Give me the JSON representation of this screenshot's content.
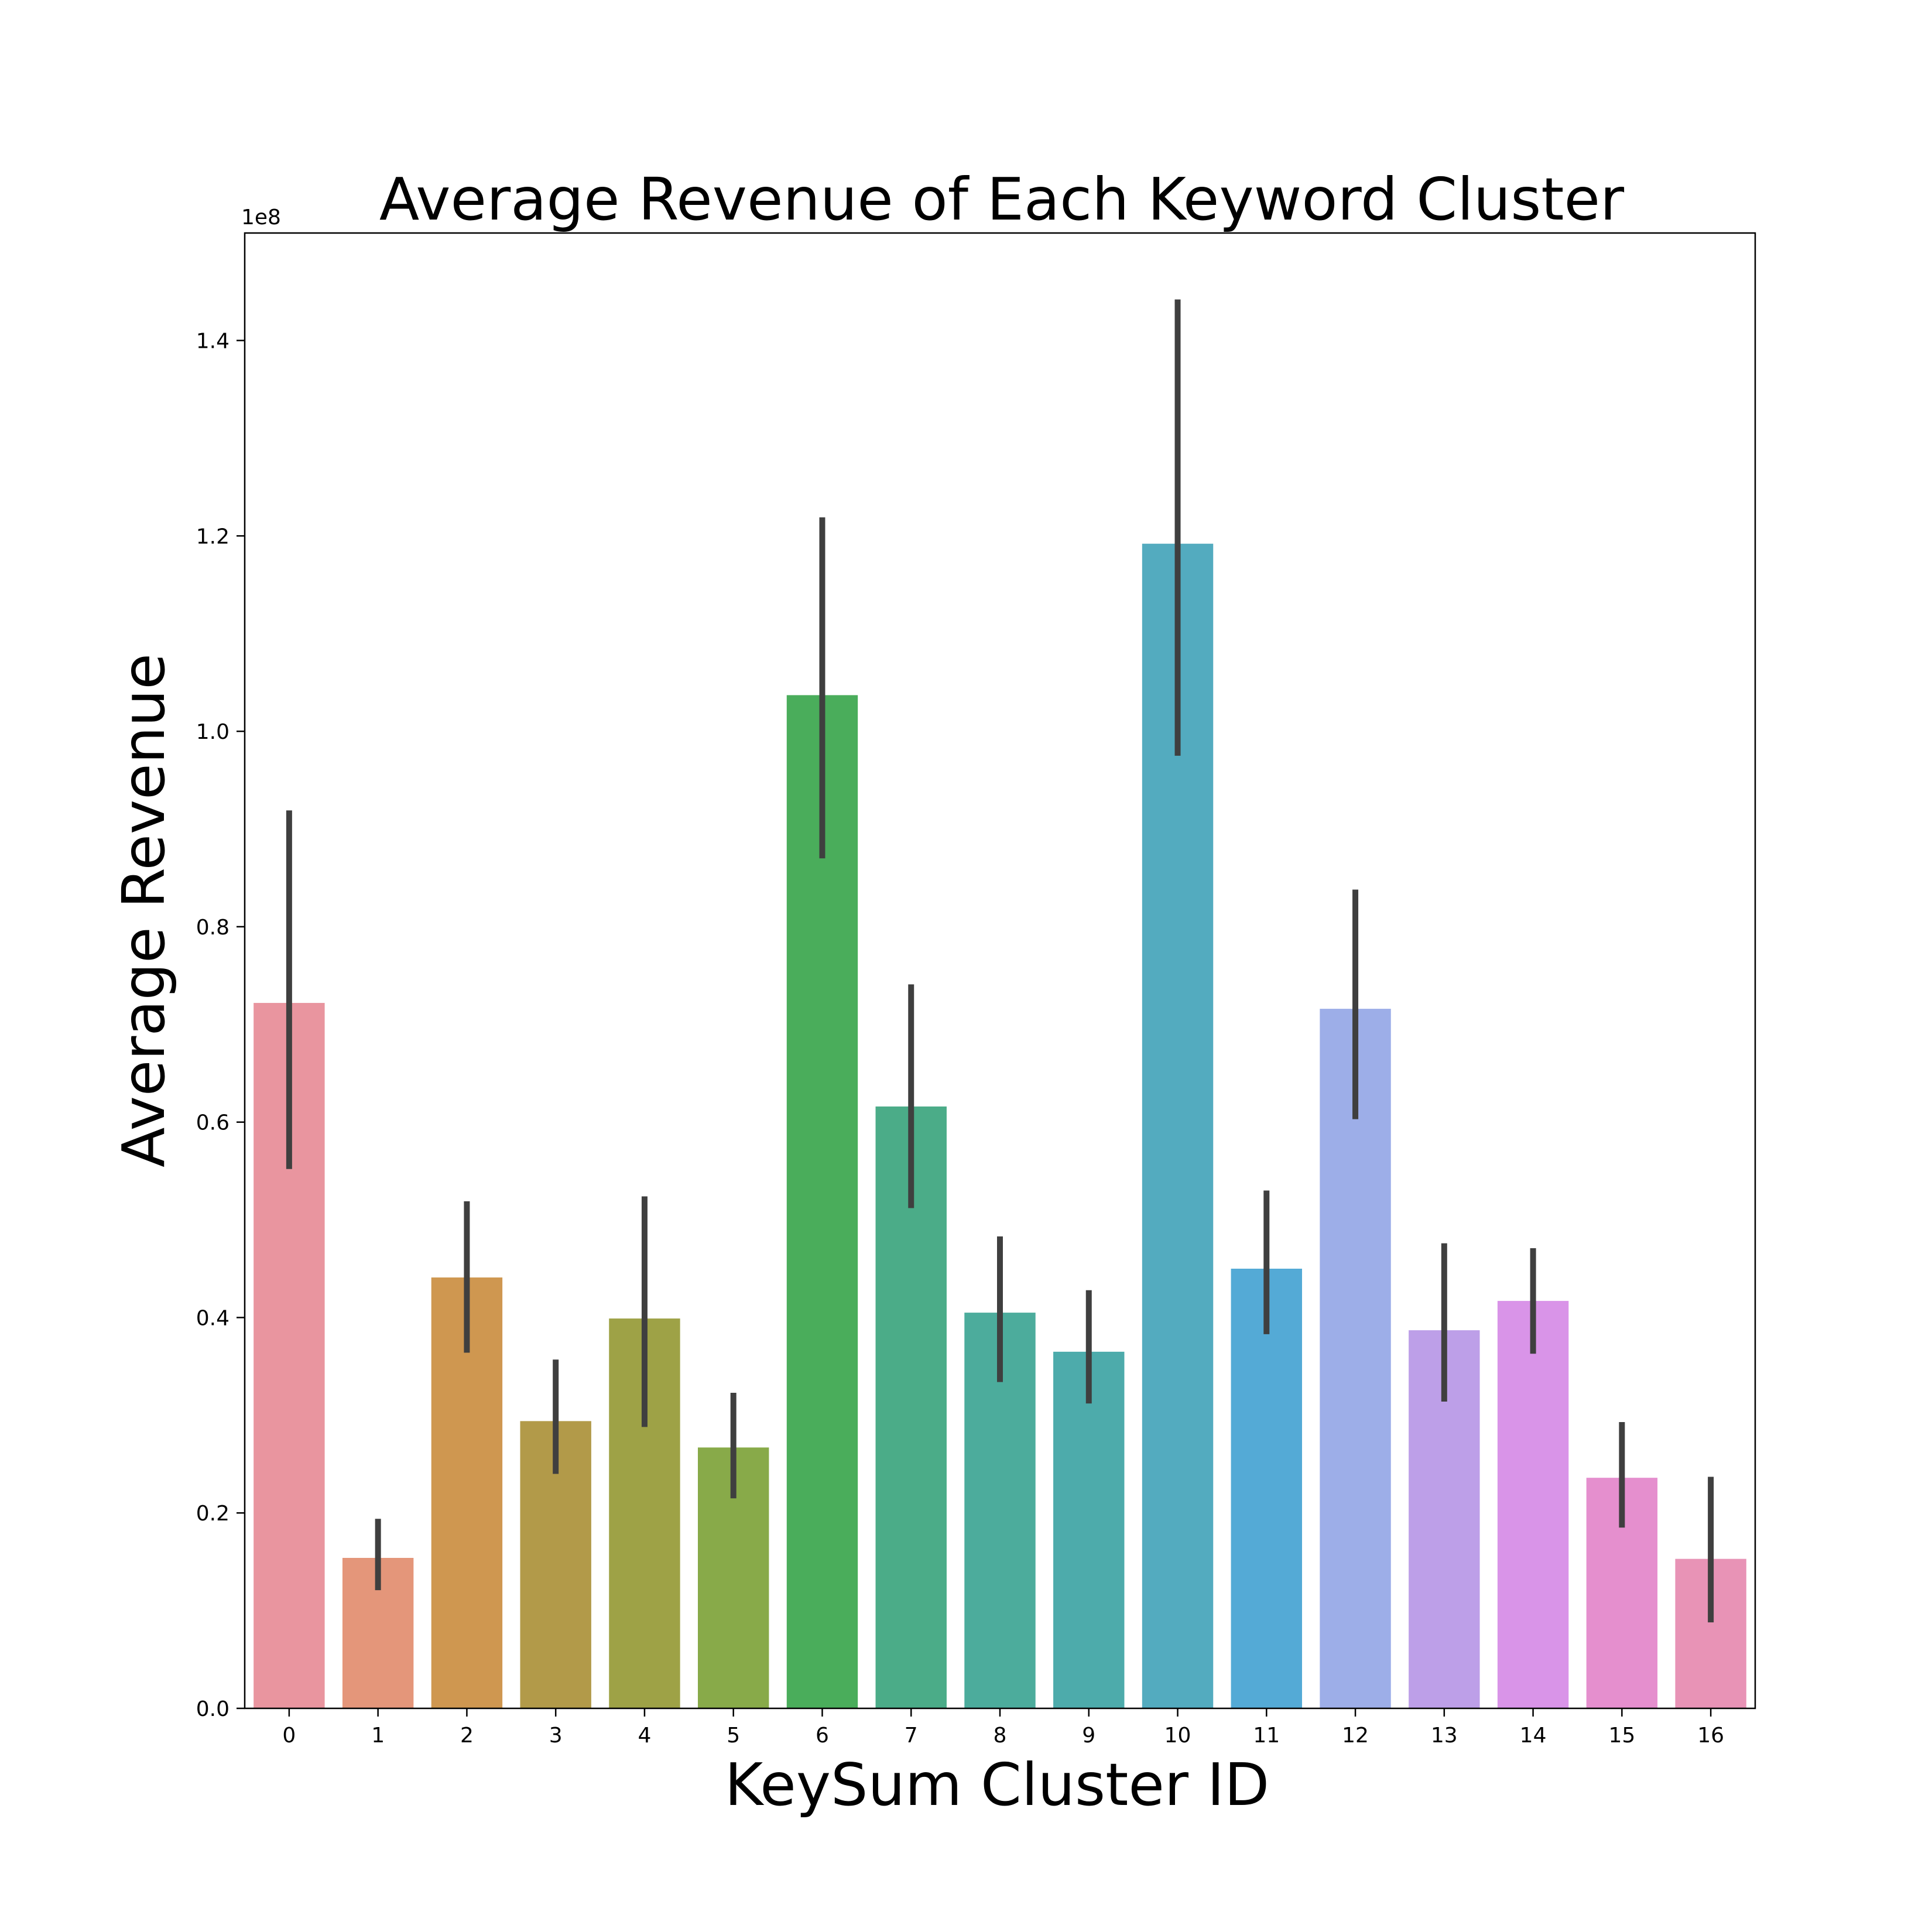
{
  "chart_data": {
    "type": "bar",
    "title": "Average Revenue of Each Keyword Cluster",
    "xlabel": "KeySum Cluster ID",
    "ylabel": "Average Revenue",
    "y_offset_label": "1e8",
    "y_scale_multiplier": 100000000,
    "ylim": [
      0,
      1.51
    ],
    "yticks": [
      0.0,
      0.2,
      0.4,
      0.6,
      0.8,
      1.0,
      1.2,
      1.4
    ],
    "ytick_labels": [
      "0.0",
      "0.2",
      "0.4",
      "0.6",
      "0.8",
      "1.0",
      "1.2",
      "1.4"
    ],
    "categories": [
      "0",
      "1",
      "2",
      "3",
      "4",
      "5",
      "6",
      "7",
      "8",
      "9",
      "10",
      "11",
      "12",
      "13",
      "14",
      "15",
      "16"
    ],
    "values": [
      0.722,
      0.154,
      0.441,
      0.294,
      0.399,
      0.267,
      1.037,
      0.616,
      0.405,
      0.365,
      1.192,
      0.45,
      0.716,
      0.387,
      0.417,
      0.236,
      0.153
    ],
    "error_low": [
      0.552,
      0.121,
      0.364,
      0.24,
      0.288,
      0.215,
      0.87,
      0.512,
      0.334,
      0.312,
      0.975,
      0.383,
      0.603,
      0.314,
      0.363,
      0.185,
      0.088
    ],
    "error_high": [
      0.919,
      0.194,
      0.519,
      0.357,
      0.524,
      0.323,
      1.219,
      0.741,
      0.483,
      0.428,
      1.442,
      0.53,
      0.838,
      0.476,
      0.471,
      0.293,
      0.237
    ],
    "colors": [
      "#e9959f",
      "#e4967a",
      "#cf9750",
      "#b29a49",
      "#9ea246",
      "#88aa49",
      "#4aad5b",
      "#4bac88",
      "#4cac9c",
      "#4dabab",
      "#53abbf",
      "#54aad6",
      "#9daee8",
      "#bd9fe8",
      "#d994e8",
      "#e58fce",
      "#e893b6"
    ],
    "error_color": "#3f3f3f",
    "grid": false,
    "legend": "none"
  }
}
